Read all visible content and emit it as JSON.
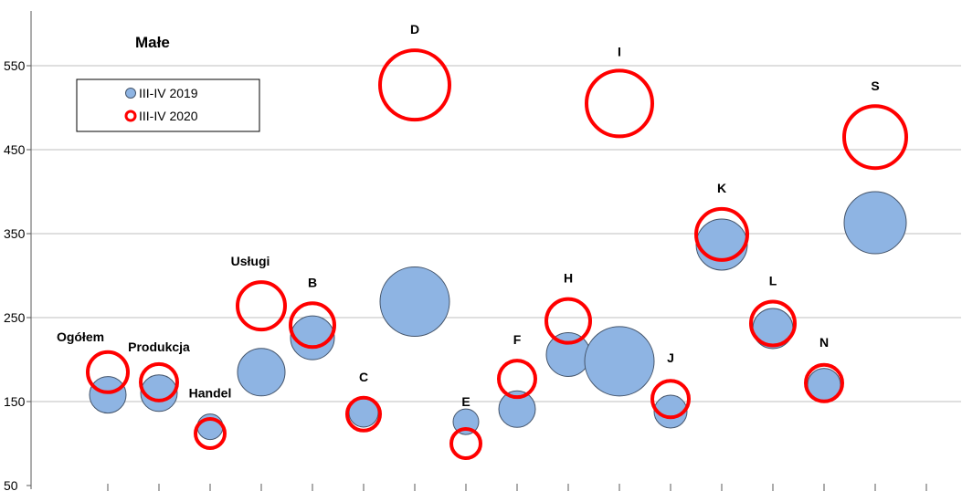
{
  "chart_data": {
    "type": "bubble",
    "title": "Małe",
    "xlabel": "",
    "ylabel": "",
    "ylim": [
      50,
      600
    ],
    "y_ticks": [
      50,
      150,
      250,
      350,
      450,
      550
    ],
    "grid": "horizontal",
    "legend_position": "top-left",
    "categories": [
      "Ogółem",
      "Produkcja",
      "Handel",
      "Usługi",
      "B",
      "C",
      "D",
      "E",
      "F",
      "H",
      "I",
      "J",
      "K",
      "L",
      "N",
      "S"
    ],
    "series": [
      {
        "name": "III-IV 2019",
        "style": "filled",
        "color": "#8eb4e3",
        "stroke": "#44546a",
        "values": [
          158,
          160,
          120,
          185,
          226,
          137,
          269,
          126,
          141,
          206,
          198,
          138,
          337,
          237,
          170,
          363
        ],
        "sizes": [
          1.0,
          1.0,
          0.7,
          1.3,
          1.2,
          0.8,
          1.9,
          0.7,
          1.0,
          1.2,
          1.9,
          0.9,
          1.4,
          1.1,
          0.9,
          1.7
        ]
      },
      {
        "name": "III-IV 2020",
        "style": "ring",
        "color": "#ff0000",
        "values": [
          185,
          173,
          112,
          264,
          241,
          135,
          527,
          100,
          177,
          246,
          505,
          153,
          349,
          243,
          172,
          465
        ],
        "sizes": [
          1.1,
          1.0,
          0.8,
          1.3,
          1.2,
          0.9,
          1.9,
          0.8,
          1.0,
          1.2,
          1.8,
          1.0,
          1.4,
          1.2,
          1.0,
          1.7
        ]
      }
    ],
    "point_labels": [
      "Ogółem",
      "Produkcja",
      "Handel",
      "Usługi",
      "B",
      "C",
      "D",
      "E",
      "F",
      "H",
      "I",
      "J",
      "K",
      "L",
      "N",
      "S"
    ]
  }
}
